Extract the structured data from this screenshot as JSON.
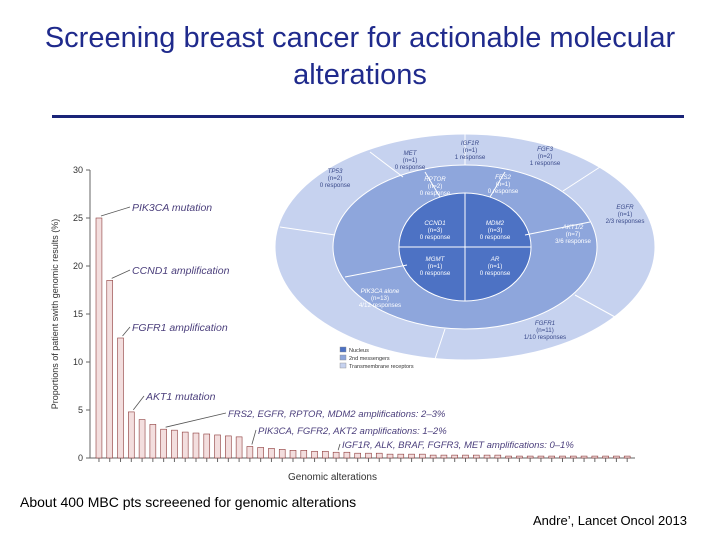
{
  "title": "Screening breast cancer for actionable molecular alterations",
  "caption": "About 400 MBC pts screeened for genomic alterations",
  "source": "Andre’, Lancet Oncol 2013",
  "chart_data": {
    "type": "bar",
    "ylabel": "Proportions of patient swith genomic results (%)",
    "xlabel": "Genomic alterations",
    "ylim": [
      0,
      30
    ],
    "yticks": [
      0,
      5,
      10,
      15,
      20,
      25,
      30
    ],
    "values": [
      25,
      18.5,
      12.5,
      4.8,
      4.0,
      3.5,
      3.0,
      2.9,
      2.7,
      2.6,
      2.5,
      2.4,
      2.3,
      2.2,
      1.2,
      1.1,
      1.0,
      0.9,
      0.8,
      0.8,
      0.7,
      0.7,
      0.6,
      0.6,
      0.5,
      0.5,
      0.5,
      0.4,
      0.4,
      0.4,
      0.4,
      0.3,
      0.3,
      0.3,
      0.3,
      0.3,
      0.3,
      0.3,
      0.2,
      0.2,
      0.2,
      0.2,
      0.2,
      0.2,
      0.2,
      0.2,
      0.2,
      0.2,
      0.2,
      0.2
    ],
    "annotations": [
      {
        "label": "PIK3CA mutation",
        "bar": 0
      },
      {
        "label": "CCND1 amplification",
        "bar": 1
      },
      {
        "label": "FGFR1 amplification",
        "bar": 2
      },
      {
        "label": "AKT1 mutation",
        "bar": 3
      },
      {
        "label": "FRS2, EGFR, RPTOR, MDM2 amplifications: 2–3%",
        "bar": 6
      },
      {
        "label": "PIK3CA, FGFR2, AKT2 amplifications: 1–2%",
        "bar": 14
      },
      {
        "label": "IGF1R, ALK, BRAF, FGFR3, MET amplifications: 0–1%",
        "bar": 22
      }
    ]
  },
  "target_diagram": {
    "outer_ring": [
      {
        "gene": "MET",
        "n": "(n=1)",
        "resp": "0 response"
      },
      {
        "gene": "IGF1R",
        "n": "(n=1)",
        "resp": "1 response"
      },
      {
        "gene": "FGF3",
        "n": "(n=2)",
        "resp": "1 response"
      },
      {
        "gene": "EGFR",
        "n": "(n=1)",
        "resp": "2/3 responses"
      },
      {
        "gene": "FGFR1",
        "n": "(n=11)",
        "resp": "1/10 responses"
      },
      {
        "gene": "TP53",
        "n": "(n=2)",
        "resp": "0 response"
      }
    ],
    "middle_ring": [
      {
        "gene": "RPTOR",
        "n": "(n=2)",
        "resp": "0 response"
      },
      {
        "gene": "FRS2",
        "n": "(n=1)",
        "resp": "0 response"
      },
      {
        "gene": "AKT1/2",
        "n": "(n=7)",
        "resp": "3/6 response"
      },
      {
        "gene": "PIK3CA alone",
        "n": "(n=13)",
        "resp": "4/12 responses"
      }
    ],
    "inner": [
      {
        "gene": "CCND1",
        "n": "(n=3)",
        "resp": "0 response"
      },
      {
        "gene": "MDM2",
        "n": "(n=3)",
        "resp": "0 response"
      },
      {
        "gene": "MGMT",
        "n": "(n=1)",
        "resp": "0 response"
      },
      {
        "gene": "AR",
        "n": "(n=1)",
        "resp": "0 response"
      }
    ],
    "legend": [
      {
        "label": "Nucleus",
        "color": "#4d72c4"
      },
      {
        "label": "2nd messengers",
        "color": "#8ea6dc"
      },
      {
        "label": "Transmembrane receptors",
        "color": "#c6d2ef"
      }
    ]
  },
  "colors": {
    "title": "#1f2a8c",
    "bar_fill": "#f3dede",
    "bar_stroke": "#8c3a3a",
    "inner": "#4d72c4",
    "middle": "#8ea6dc",
    "outer": "#c6d2ef"
  }
}
